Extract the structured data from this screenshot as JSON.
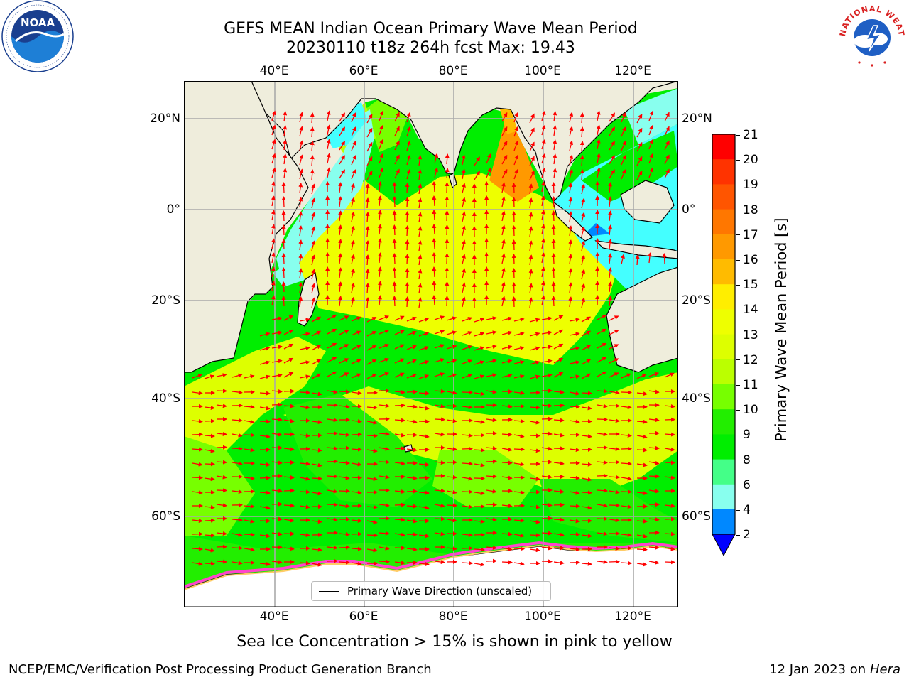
{
  "header": {
    "title_line1": "GEFS MEAN Indian Ocean Primary Wave Mean Period",
    "title_line2": "20230110 t18z 264h fcst   Max: 19.43"
  },
  "logos": {
    "left": {
      "name": "noaa-logo",
      "text": "NOAA",
      "ring_text": "NATIONAL OCEANIC AND ATMOSPHERIC ADMINISTRATION · U.S. DEPARTMENT OF COMMERCE"
    },
    "right": {
      "name": "nws-logo",
      "ring_text": "NATIONAL WEATHER SERVICE"
    }
  },
  "map": {
    "lon_ticks": [
      "40°E",
      "60°E",
      "80°E",
      "100°E",
      "120°E"
    ],
    "lat_ticks_left": [
      "20°N",
      "0°",
      "20°S",
      "40°S",
      "60°S"
    ],
    "lat_ticks_right": [
      "20°N",
      "0°",
      "20°S",
      "40°S",
      "60°S"
    ],
    "legend_label": "Primary Wave Direction (unscaled)",
    "colors": {
      "land": "#efeddc",
      "ice_edge": "#ff44cc",
      "arrow": "#ff0000",
      "grid": "#aaaaaa"
    }
  },
  "colorbar": {
    "label": "Primary Wave Mean Period [s]",
    "ticks": [
      "21",
      "20",
      "19",
      "18",
      "17",
      "16",
      "15",
      "14",
      "13",
      "12",
      "11",
      "10",
      "9",
      "8",
      "6",
      "4",
      "2"
    ],
    "colors": [
      "#ff0000",
      "#ff3300",
      "#ff5500",
      "#ff7700",
      "#ff9900",
      "#ffbb00",
      "#ffee00",
      "#eeff00",
      "#ddff00",
      "#bbff00",
      "#77ff00",
      "#22ee00",
      "#00ee00",
      "#44ff88",
      "#88ffee",
      "#44ffff",
      "#00ffff",
      "#0088ff",
      "#0000ff"
    ]
  },
  "caption": "Sea Ice Concentration > 15% is shown in pink to yellow",
  "footer": {
    "left": "NCEP/EMC/Verification Post Processing Product Generation Branch",
    "right_date": "12 Jan 2023 on ",
    "right_host": "Hera"
  }
}
